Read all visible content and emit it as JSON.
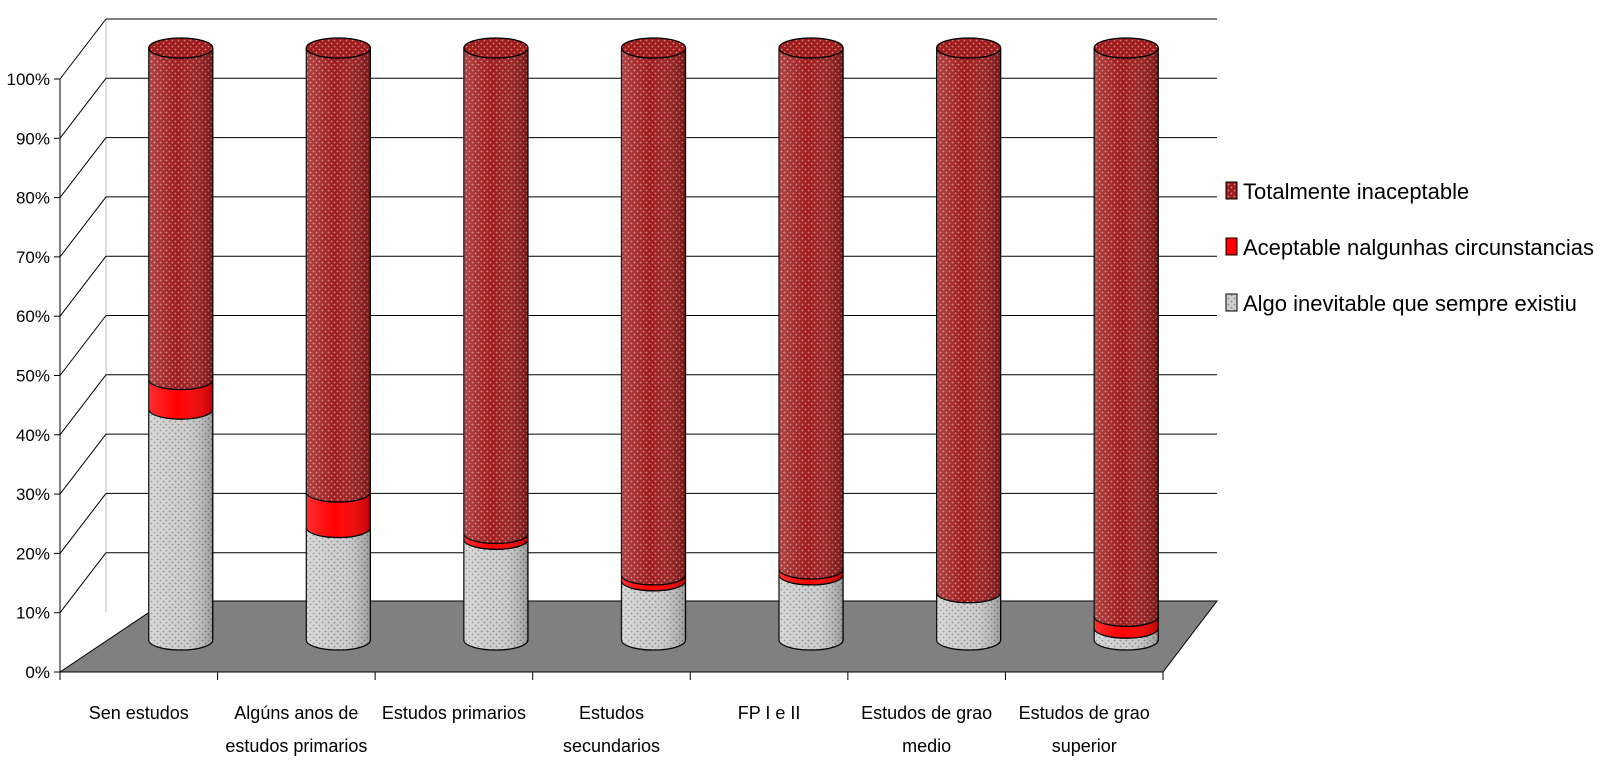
{
  "chart_data": {
    "type": "bar",
    "stacked": "percent",
    "style": "3d-cylinder",
    "title": "",
    "xlabel": "",
    "ylabel": "",
    "ylim": [
      0,
      100
    ],
    "yticks": [
      "0%",
      "10%",
      "20%",
      "30%",
      "40%",
      "50%",
      "60%",
      "70%",
      "80%",
      "90%",
      "100%"
    ],
    "grid": true,
    "legend_position": "right",
    "categories": [
      [
        "Sen estudos"
      ],
      [
        "Algúns anos de",
        "estudos primarios"
      ],
      [
        "Estudos primarios"
      ],
      [
        "Estudos",
        "secundarios"
      ],
      [
        "FP I e II"
      ],
      [
        "Estudos de grao",
        "medio"
      ],
      [
        "Estudos de grao",
        "superior"
      ]
    ],
    "series": [
      {
        "name": "Algo inevitable que sempre existiu",
        "color": "#c8c8c8",
        "values": [
          39,
          19,
          17,
          10,
          11,
          8,
          2
        ]
      },
      {
        "name": "Aceptable nalgunhas circunstancias",
        "color": "#ff0000",
        "values": [
          5,
          6,
          1,
          1,
          1,
          0,
          2
        ]
      },
      {
        "name": "Totalmente inaceptable",
        "color": "#9b1b1b",
        "values": [
          56,
          75,
          82,
          89,
          88,
          92,
          96
        ]
      }
    ],
    "legend_order": [
      2,
      1,
      0
    ]
  }
}
